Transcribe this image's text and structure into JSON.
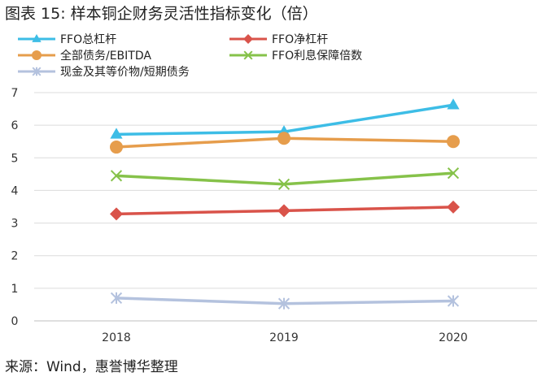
{
  "title": "图表 15: 样本铜企财务灵活性指标变化（倍）",
  "source": "来源：Wind，惠誉博华整理",
  "chart_data": {
    "type": "line",
    "x": [
      "2018",
      "2019",
      "2020"
    ],
    "ylim": [
      0,
      7
    ],
    "yticks": [
      "0",
      "1",
      "2",
      "3",
      "4",
      "5",
      "6",
      "7"
    ],
    "grid": "horizontal",
    "legend_position": "top",
    "series": [
      {
        "name": "FFO总杠杆",
        "values": [
          5.72,
          5.8,
          6.62
        ],
        "color": "#3dbde6",
        "marker": "triangle"
      },
      {
        "name": "FFO净杠杆",
        "values": [
          3.28,
          3.38,
          3.49
        ],
        "color": "#d9534a",
        "marker": "diamond"
      },
      {
        "name": "全部债务/EBITDA",
        "values": [
          5.33,
          5.6,
          5.5
        ],
        "color": "#e69d4c",
        "marker": "circle"
      },
      {
        "name": "FFO利息保障倍数",
        "values": [
          4.45,
          4.19,
          4.53
        ],
        "color": "#86c24a",
        "marker": "x"
      },
      {
        "name": "现金及其等价物/短期债务",
        "values": [
          0.7,
          0.53,
          0.61
        ],
        "color": "#b4c2de",
        "marker": "star"
      }
    ]
  }
}
